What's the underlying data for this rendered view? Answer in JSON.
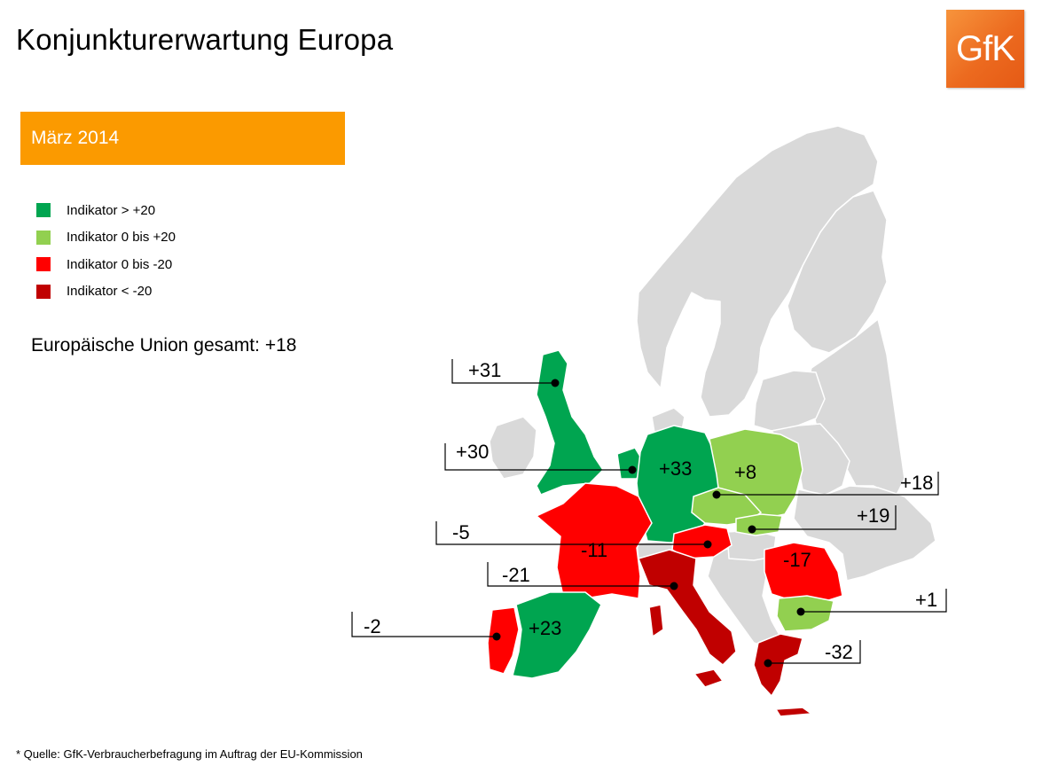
{
  "title": "Konjunkturerwartung Europa",
  "logo_text": "GfK",
  "date_label": "März 2014",
  "legend": [
    {
      "label": "Indikator > +20",
      "color": "#00a550"
    },
    {
      "label": "Indikator 0 bis +20",
      "color": "#92d050"
    },
    {
      "label": "Indikator 0 bis -20",
      "color": "#ff0000"
    },
    {
      "label": "Indikator < -20",
      "color": "#c00000"
    }
  ],
  "eu_total": "Europäische Union gesamt: +18",
  "source": "* Quelle: GfK-Verbraucherbefragung im Auftrag der EU-Kommission",
  "map_colors": {
    "other": "#d9d9d9"
  },
  "countries": {
    "uk": {
      "value": "+31",
      "color": "#00a550"
    },
    "netherlands": {
      "value": "+30",
      "color": "#00a550"
    },
    "germany": {
      "value": "+33",
      "color": "#00a550"
    },
    "poland": {
      "value": "+8",
      "color": "#92d050"
    },
    "czech": {
      "value": "+18",
      "color": "#92d050"
    },
    "slovakia": {
      "value": "+19",
      "color": "#92d050"
    },
    "austria": {
      "value": "-5",
      "color": "#ff0000"
    },
    "france": {
      "value": "-11",
      "color": "#ff0000"
    },
    "romania": {
      "value": "-17",
      "color": "#ff0000"
    },
    "italy": {
      "value": "-21",
      "color": "#c00000"
    },
    "bulgaria": {
      "value": "+1",
      "color": "#92d050"
    },
    "portugal": {
      "value": "-2",
      "color": "#ff0000"
    },
    "spain": {
      "value": "+23",
      "color": "#00a550"
    },
    "greece": {
      "value": "-32",
      "color": "#c00000"
    }
  }
}
